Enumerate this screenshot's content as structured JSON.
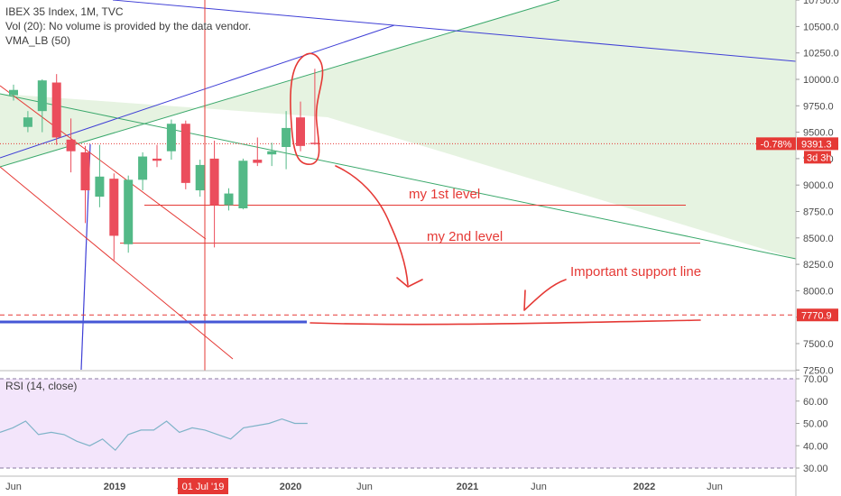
{
  "legend": {
    "symbol": "IBEX 35 Index, 1M, TVC",
    "volume": "Vol (20): No volume is provided by the data vendor.",
    "vma": "VMA_LB (50)",
    "rsi": "RSI (14, close)"
  },
  "price_badge": {
    "change": "-0.78%",
    "price": "9391.3",
    "countdown": "3d 3h"
  },
  "support_badge": "7770.9",
  "crosshair_date": "01 Jul '19",
  "annotations": {
    "level1": "my 1st level",
    "level2": "my 2nd level",
    "support": "Important support line"
  },
  "colors": {
    "up": "#53b987",
    "down": "#eb4d5c",
    "annotation": "#e53935",
    "rsi_line": "#7fb3c8",
    "rsi_band": "#f3e5fb",
    "channel_fill": "#e6f3e1",
    "channel_line": "#3aa86b",
    "trend_blue": "#3f3fd6"
  },
  "chart_data": [
    {
      "type": "candlestick",
      "title": "IBEX 35 Index, 1M, TVC",
      "y_ticks": [
        "10750.0",
        "10500.0",
        "10250.0",
        "10000.0",
        "9750.0",
        "9500.0",
        "9250.0",
        "9000.0",
        "8750.0",
        "8500.0",
        "8250.0",
        "8000.0",
        "7750.0",
        "7500.0",
        "7250.0"
      ],
      "ylim": [
        7250,
        10780
      ],
      "x_ticks": [
        "Jun",
        "2019",
        "Jun",
        "2020",
        "Jun",
        "2021",
        "Jun",
        "2022",
        "Jun"
      ],
      "last_price": 9391.3,
      "support_level": 7770.9,
      "level_1": 8810,
      "level_2": 8450,
      "candles": [
        {
          "o": 9850,
          "h": 9950,
          "l": 9800,
          "c": 9900
        },
        {
          "o": 9550,
          "h": 9700,
          "l": 9500,
          "c": 9640
        },
        {
          "o": 9700,
          "h": 10000,
          "l": 9500,
          "c": 9990
        },
        {
          "o": 9970,
          "h": 10050,
          "l": 9380,
          "c": 9450
        },
        {
          "o": 9430,
          "h": 9630,
          "l": 9120,
          "c": 9320
        },
        {
          "o": 9310,
          "h": 9370,
          "l": 8640,
          "c": 8950
        },
        {
          "o": 8890,
          "h": 9380,
          "l": 8790,
          "c": 9080
        },
        {
          "o": 9060,
          "h": 9110,
          "l": 8290,
          "c": 8520
        },
        {
          "o": 8440,
          "h": 9090,
          "l": 8360,
          "c": 9050
        },
        {
          "o": 9050,
          "h": 9310,
          "l": 8950,
          "c": 9270
        },
        {
          "o": 9250,
          "h": 9380,
          "l": 9170,
          "c": 9230
        },
        {
          "o": 9320,
          "h": 9620,
          "l": 9240,
          "c": 9580
        },
        {
          "o": 9580,
          "h": 9610,
          "l": 8960,
          "c": 9020
        },
        {
          "o": 8950,
          "h": 9240,
          "l": 8890,
          "c": 9190
        },
        {
          "o": 9250,
          "h": 9420,
          "l": 8410,
          "c": 8810
        },
        {
          "o": 8810,
          "h": 8970,
          "l": 8760,
          "c": 8920
        },
        {
          "o": 8780,
          "h": 9250,
          "l": 8770,
          "c": 9230
        },
        {
          "o": 9240,
          "h": 9450,
          "l": 9180,
          "c": 9210
        },
        {
          "o": 9290,
          "h": 9400,
          "l": 9180,
          "c": 9320
        },
        {
          "o": 9360,
          "h": 9700,
          "l": 9150,
          "c": 9540
        },
        {
          "o": 9640,
          "h": 9790,
          "l": 9320,
          "c": 9370
        },
        {
          "o": 9400,
          "h": 10100,
          "l": 9380,
          "c": 9391.3
        }
      ]
    },
    {
      "type": "line",
      "title": "RSI (14, close)",
      "y_ticks": [
        "70.00",
        "60.00",
        "50.00",
        "40.00",
        "30.00"
      ],
      "ylim": [
        28,
        72
      ],
      "series": [
        {
          "values": [
            46,
            48,
            51,
            45,
            46,
            45,
            42,
            40,
            43,
            38,
            45,
            47,
            47,
            51,
            46,
            48,
            47,
            45,
            43,
            48,
            49,
            50,
            52,
            50,
            50
          ]
        }
      ]
    }
  ]
}
